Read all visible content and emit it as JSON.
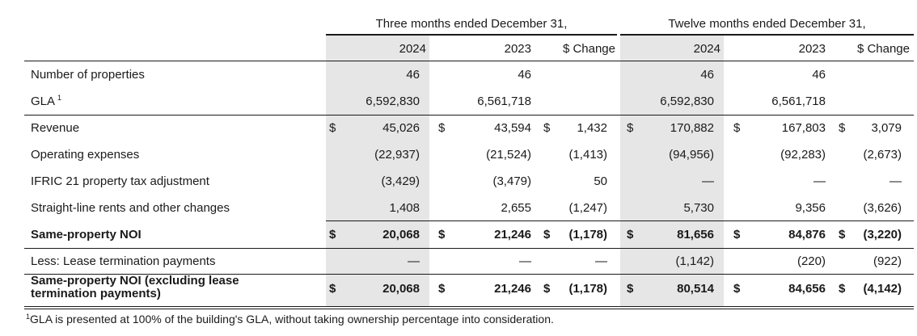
{
  "header": {
    "three_months": "Three months ended December 31,",
    "twelve_months": "Twelve months ended December 31,",
    "columns": [
      "2024",
      "2023",
      "$ Change",
      "2024",
      "2023",
      "$ Change"
    ]
  },
  "rows": [
    {
      "label": "Number of properties",
      "sup": "",
      "bold": false,
      "values": [
        "",
        "46",
        "",
        "46",
        "",
        "",
        "",
        "46",
        "",
        "46",
        "",
        ""
      ]
    },
    {
      "label": "GLA",
      "sup": "1",
      "bold": false,
      "values": [
        "",
        "6,592,830",
        "",
        "6,561,718",
        "",
        "",
        "",
        "6,592,830",
        "",
        "6,561,718",
        "",
        ""
      ]
    },
    {
      "label": "Revenue",
      "sup": "",
      "bold": false,
      "values": [
        "$",
        "45,026",
        "$",
        "43,594",
        "$",
        "1,432",
        "$",
        "170,882",
        "$",
        "167,803",
        "$",
        "3,079"
      ]
    },
    {
      "label": "Operating expenses",
      "sup": "",
      "bold": false,
      "values": [
        "",
        "(22,937)",
        "",
        "(21,524)",
        "",
        "(1,413)",
        "",
        "(94,956)",
        "",
        "(92,283)",
        "",
        "(2,673)"
      ]
    },
    {
      "label": "IFRIC 21 property tax adjustment",
      "sup": "",
      "bold": false,
      "values": [
        "",
        "(3,429)",
        "",
        "(3,479)",
        "",
        "50",
        "",
        "—",
        "",
        "—",
        "",
        "—"
      ]
    },
    {
      "label": "Straight-line rents and other changes",
      "sup": "",
      "bold": false,
      "values": [
        "",
        "1,408",
        "",
        "2,655",
        "",
        "(1,247)",
        "",
        "5,730",
        "",
        "9,356",
        "",
        "(3,626)"
      ]
    },
    {
      "label": "Same-property NOI",
      "sup": "",
      "bold": true,
      "values": [
        "$",
        "20,068",
        "$",
        "21,246",
        "$",
        "(1,178)",
        "$",
        "81,656",
        "$",
        "84,876",
        "$",
        "(3,220)"
      ]
    },
    {
      "label": "Less: Lease termination payments",
      "sup": "",
      "bold": false,
      "values": [
        "",
        "—",
        "",
        "—",
        "",
        "—",
        "",
        "(1,142)",
        "",
        "(220)",
        "",
        "(922)"
      ]
    },
    {
      "label": "Same-property NOI (excluding lease\ntermination payments)",
      "sup": "",
      "bold": true,
      "values": [
        "$",
        "20,068",
        "$",
        "21,246",
        "$",
        "(1,178)",
        "$",
        "80,514",
        "$",
        "84,656",
        "$",
        "(4,142)"
      ]
    }
  ],
  "footnote": {
    "marker": "1",
    "text": "GLA is presented at 100% of the building's GLA, without taking ownership percentage into consideration."
  },
  "colors": {
    "shade": "#e6e6e6",
    "rule": "#1a1a1a",
    "text": "#1a1a1a"
  }
}
